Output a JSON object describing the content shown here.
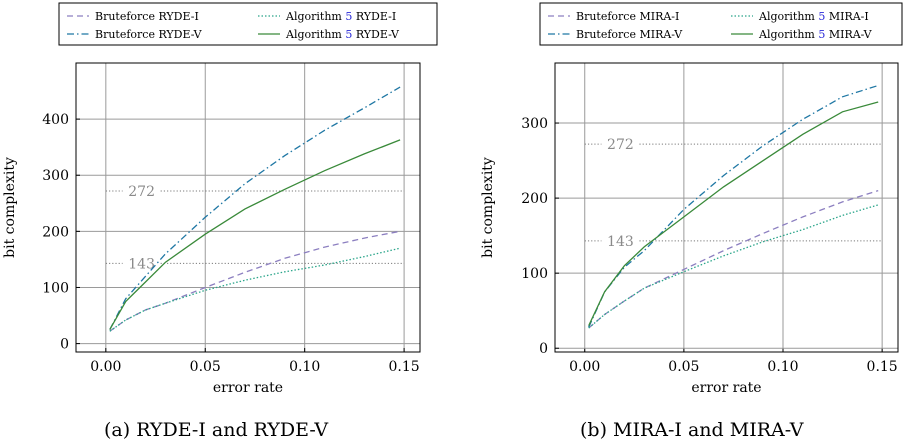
{
  "chart_data": [
    {
      "type": "line",
      "caption": "(a) RYDE-I and RYDE-V",
      "xlabel": "error rate",
      "ylabel": "bit complexity",
      "xlim": [
        -0.015,
        0.158
      ],
      "ylim": [
        -15,
        500
      ],
      "xticks": [
        0.0,
        0.05,
        0.1,
        0.15
      ],
      "xtick_labels": [
        "0.00",
        "0.05",
        "0.10",
        "0.15"
      ],
      "yticks": [
        0,
        100,
        200,
        300,
        400
      ],
      "ytick_labels": [
        "0",
        "100",
        "200",
        "300",
        "400"
      ],
      "grid": true,
      "legend_position": "above",
      "thresholds": [
        {
          "value": 272,
          "label": "272"
        },
        {
          "value": 143,
          "label": "143"
        }
      ],
      "series": [
        {
          "name": "Bruteforce RYDE-I",
          "style": "dashed",
          "color": "#8c7fc0",
          "x": [
            0.002,
            0.01,
            0.02,
            0.03,
            0.05,
            0.07,
            0.09,
            0.11,
            0.13,
            0.148
          ],
          "y": [
            22,
            42,
            60,
            72,
            100,
            127,
            152,
            172,
            188,
            200
          ]
        },
        {
          "name": "Bruteforce RYDE-V",
          "style": "dashdot",
          "color": "#1f77a4",
          "x": [
            0.002,
            0.01,
            0.02,
            0.03,
            0.05,
            0.07,
            0.09,
            0.11,
            0.13,
            0.148
          ],
          "y": [
            25,
            80,
            120,
            160,
            225,
            285,
            335,
            380,
            420,
            457
          ]
        },
        {
          "name": "Algorithm 5 RYDE-I",
          "style": "dotted",
          "color": "#2aa58a",
          "x": [
            0.002,
            0.01,
            0.02,
            0.03,
            0.05,
            0.07,
            0.09,
            0.11,
            0.13,
            0.148
          ],
          "y": [
            22,
            42,
            60,
            72,
            95,
            113,
            128,
            140,
            155,
            170
          ]
        },
        {
          "name": "Algorithm 5 RYDE-V",
          "style": "solid",
          "color": "#3a8a3a",
          "x": [
            0.002,
            0.01,
            0.02,
            0.03,
            0.05,
            0.07,
            0.09,
            0.11,
            0.13,
            0.148
          ],
          "y": [
            25,
            75,
            110,
            145,
            195,
            240,
            275,
            308,
            338,
            363
          ]
        }
      ]
    },
    {
      "type": "line",
      "caption": "(b) MIRA-I and MIRA-V",
      "xlabel": "error rate",
      "ylabel": "bit complexity",
      "xlim": [
        -0.015,
        0.158
      ],
      "ylim": [
        -5,
        380
      ],
      "xticks": [
        0.0,
        0.05,
        0.1,
        0.15
      ],
      "xtick_labels": [
        "0.00",
        "0.05",
        "0.10",
        "0.15"
      ],
      "yticks": [
        0,
        100,
        200,
        300
      ],
      "ytick_labels": [
        "0",
        "100",
        "200",
        "300"
      ],
      "grid": true,
      "legend_position": "above",
      "thresholds": [
        {
          "value": 272,
          "label": "272"
        },
        {
          "value": 143,
          "label": "143"
        }
      ],
      "series": [
        {
          "name": "Bruteforce MIRA-I",
          "style": "dashed",
          "color": "#8c7fc0",
          "x": [
            0.002,
            0.01,
            0.02,
            0.03,
            0.05,
            0.07,
            0.09,
            0.11,
            0.13,
            0.148
          ],
          "y": [
            27,
            45,
            63,
            80,
            105,
            130,
            153,
            175,
            195,
            210
          ]
        },
        {
          "name": "Bruteforce MIRA-V",
          "style": "dashdot",
          "color": "#1f77a4",
          "x": [
            0.002,
            0.01,
            0.02,
            0.03,
            0.05,
            0.07,
            0.09,
            0.11,
            0.13,
            0.148
          ],
          "y": [
            28,
            75,
            108,
            130,
            185,
            230,
            270,
            305,
            335,
            350
          ]
        },
        {
          "name": "Algorithm 5 MIRA-I",
          "style": "dotted",
          "color": "#2aa58a",
          "x": [
            0.002,
            0.01,
            0.02,
            0.03,
            0.05,
            0.07,
            0.09,
            0.11,
            0.13,
            0.148
          ],
          "y": [
            27,
            45,
            63,
            80,
            102,
            123,
            142,
            158,
            177,
            191
          ]
        },
        {
          "name": "Algorithm 5 MIRA-V",
          "style": "solid",
          "color": "#3a8a3a",
          "x": [
            0.002,
            0.01,
            0.02,
            0.03,
            0.05,
            0.07,
            0.09,
            0.11,
            0.13,
            0.148
          ],
          "y": [
            30,
            75,
            110,
            135,
            175,
            215,
            250,
            285,
            315,
            328
          ]
        }
      ]
    }
  ]
}
